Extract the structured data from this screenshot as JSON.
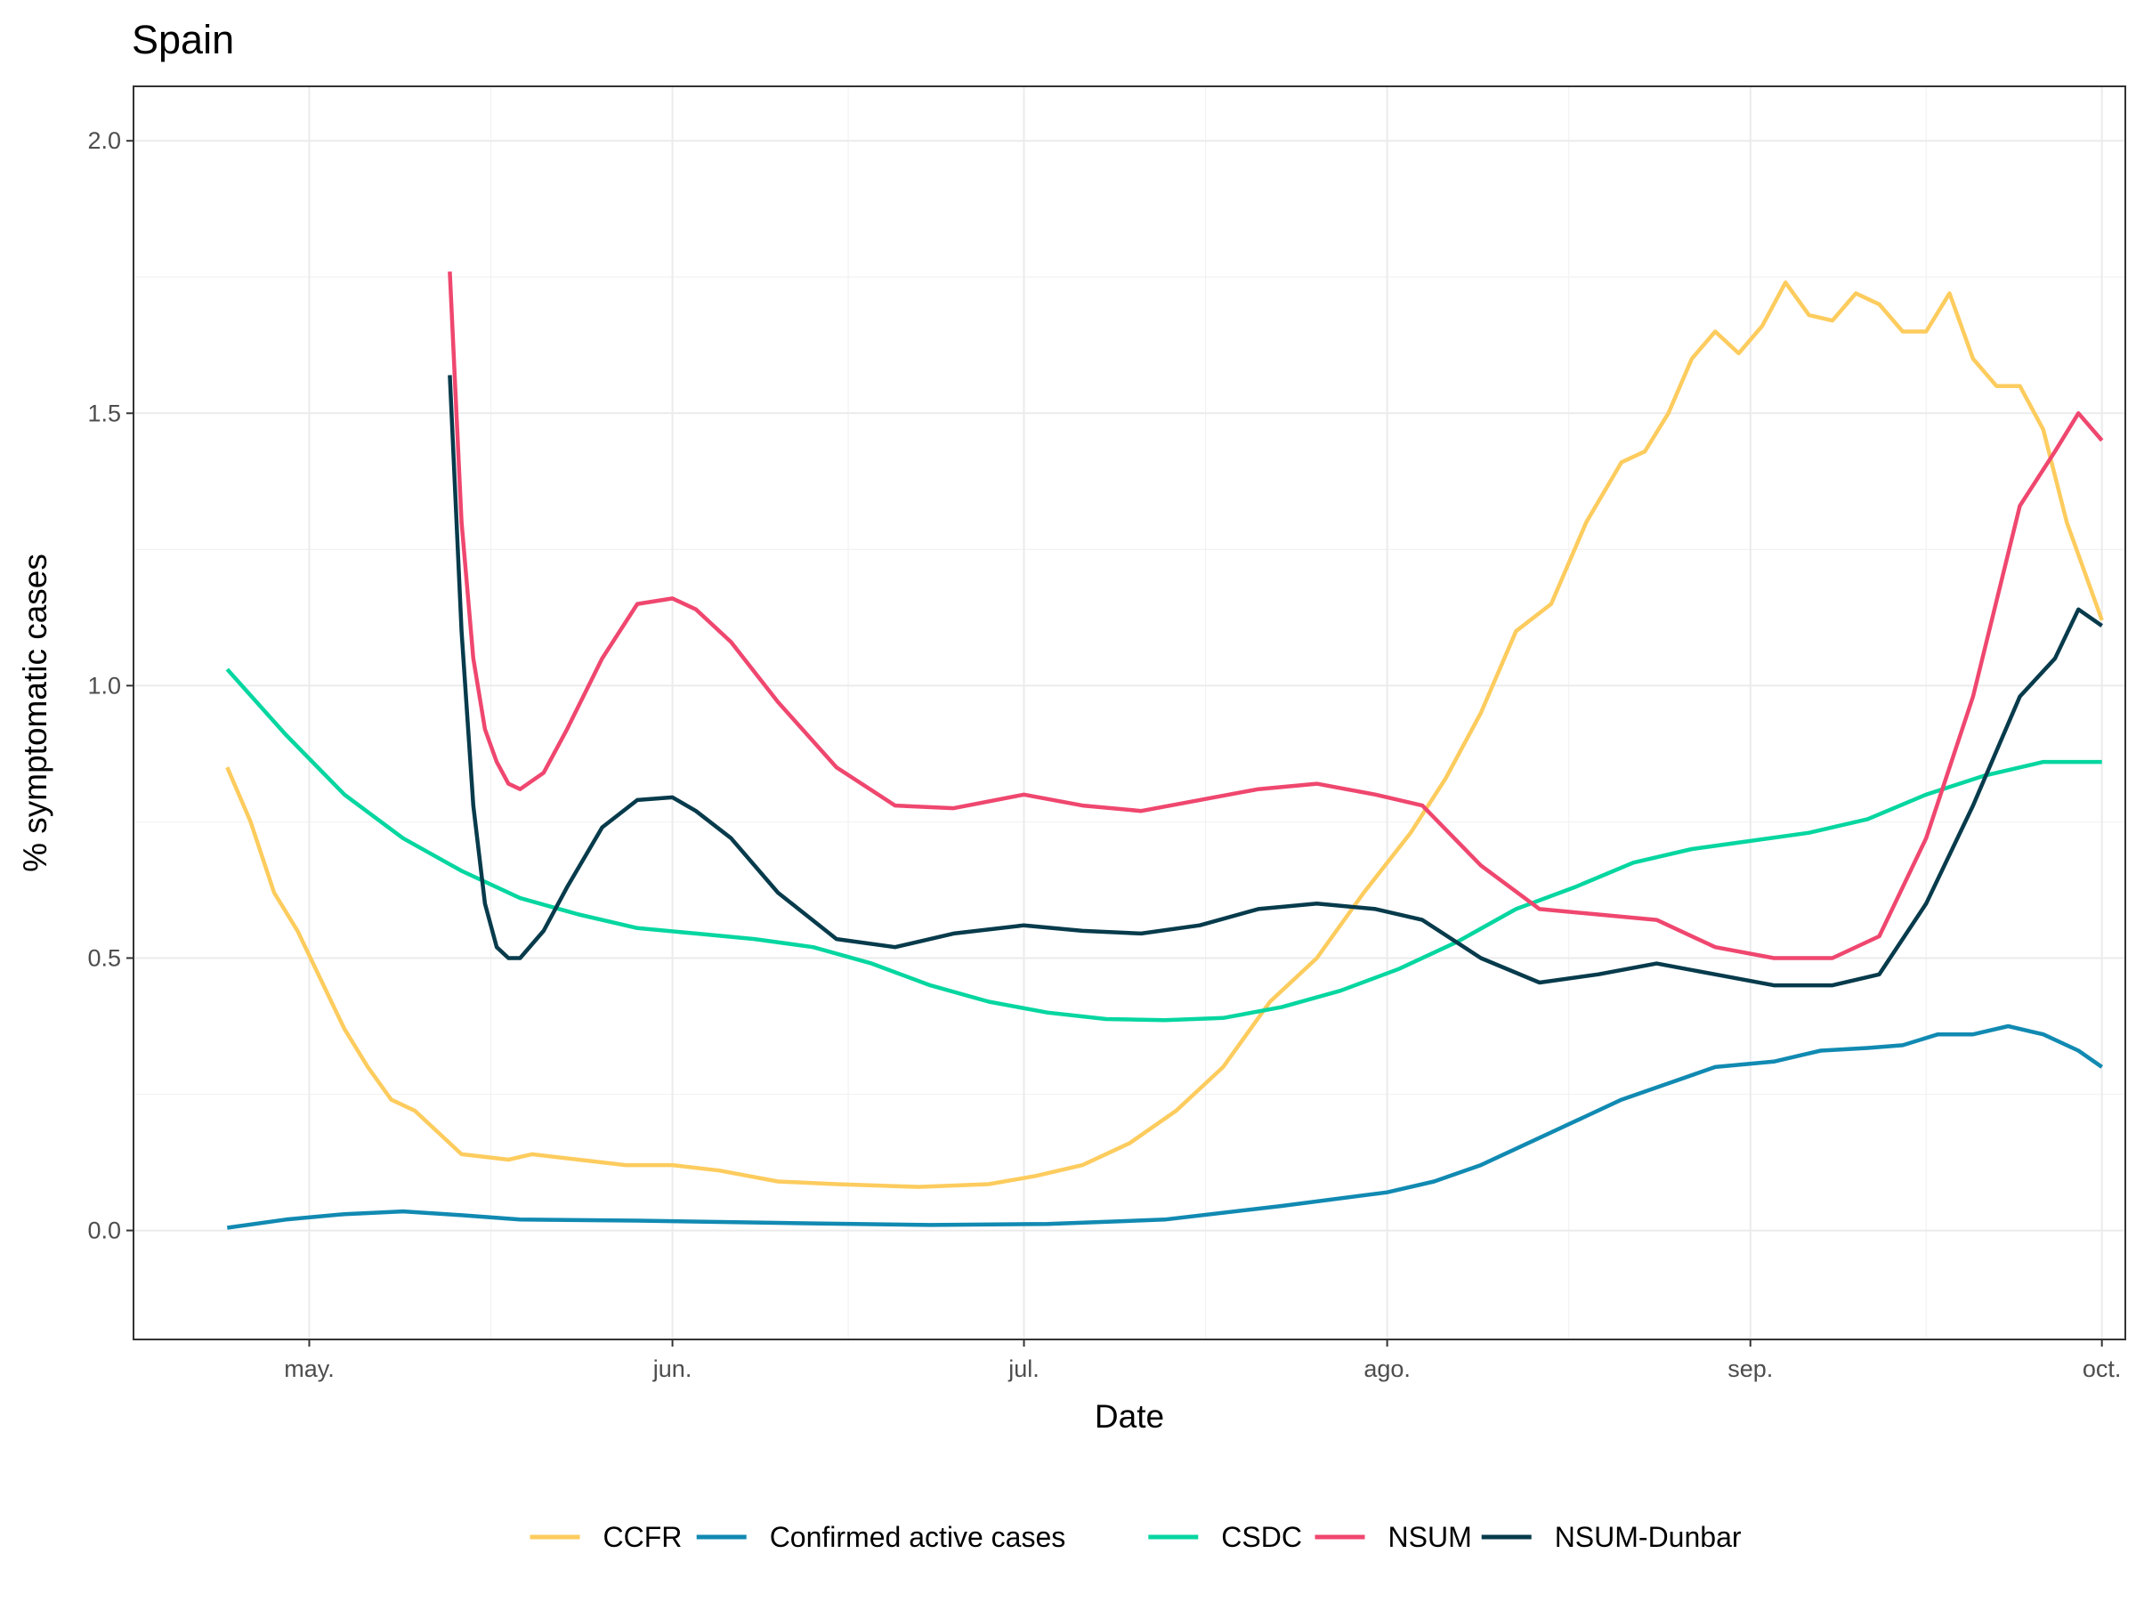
{
  "chart_data": {
    "type": "line",
    "title": "Spain",
    "xlabel": "Date",
    "ylabel": "% symptomatic cases",
    "ylim": [
      -0.2,
      2.1
    ],
    "yticks": [
      "0.0",
      "0.5",
      "1.0",
      "1.5",
      "2.0"
    ],
    "ytick_values": [
      0.0,
      0.5,
      1.0,
      1.5,
      2.0
    ],
    "xlim": [
      "2020-04-16",
      "2020-10-03"
    ],
    "xticks": [
      "may.",
      "jun.",
      "jul.",
      "ago.",
      "sep.",
      "oct."
    ],
    "xtick_values": [
      "2020-05-01",
      "2020-06-01",
      "2020-07-01",
      "2020-08-01",
      "2020-09-01",
      "2020-10-01"
    ],
    "grid": true,
    "legend_position": "bottom",
    "series": [
      {
        "name": "CCFR",
        "color": "#FDCC5E",
        "x": [
          "2020-04-24",
          "2020-04-26",
          "2020-04-28",
          "2020-04-30",
          "2020-05-02",
          "2020-05-04",
          "2020-05-06",
          "2020-05-08",
          "2020-05-10",
          "2020-05-12",
          "2020-05-14",
          "2020-05-16",
          "2020-05-18",
          "2020-05-20",
          "2020-05-24",
          "2020-05-28",
          "2020-06-01",
          "2020-06-05",
          "2020-06-10",
          "2020-06-15",
          "2020-06-22",
          "2020-06-28",
          "2020-07-02",
          "2020-07-06",
          "2020-07-10",
          "2020-07-14",
          "2020-07-18",
          "2020-07-22",
          "2020-07-26",
          "2020-07-30",
          "2020-08-03",
          "2020-08-06",
          "2020-08-09",
          "2020-08-12",
          "2020-08-15",
          "2020-08-18",
          "2020-08-21",
          "2020-08-23",
          "2020-08-25",
          "2020-08-27",
          "2020-08-29",
          "2020-08-31",
          "2020-09-02",
          "2020-09-04",
          "2020-09-06",
          "2020-09-08",
          "2020-09-10",
          "2020-09-12",
          "2020-09-14",
          "2020-09-16",
          "2020-09-18",
          "2020-09-20",
          "2020-09-22",
          "2020-09-24",
          "2020-09-26",
          "2020-09-28",
          "2020-10-01"
        ],
        "y": [
          0.85,
          0.75,
          0.62,
          0.55,
          0.46,
          0.37,
          0.3,
          0.24,
          0.22,
          0.18,
          0.14,
          0.135,
          0.13,
          0.14,
          0.13,
          0.12,
          0.12,
          0.11,
          0.09,
          0.085,
          0.08,
          0.085,
          0.1,
          0.12,
          0.16,
          0.22,
          0.3,
          0.42,
          0.5,
          0.62,
          0.73,
          0.83,
          0.95,
          1.1,
          1.15,
          1.3,
          1.41,
          1.43,
          1.5,
          1.6,
          1.65,
          1.61,
          1.66,
          1.74,
          1.68,
          1.67,
          1.72,
          1.7,
          1.65,
          1.65,
          1.72,
          1.6,
          1.55,
          1.55,
          1.47,
          1.3,
          1.12
        ]
      },
      {
        "name": "Confirmed active cases",
        "color": "#118AB2",
        "x": [
          "2020-04-24",
          "2020-04-29",
          "2020-05-04",
          "2020-05-09",
          "2020-05-14",
          "2020-05-19",
          "2020-05-29",
          "2020-06-13",
          "2020-06-23",
          "2020-07-03",
          "2020-07-13",
          "2020-07-23",
          "2020-08-01",
          "2020-08-05",
          "2020-08-09",
          "2020-08-13",
          "2020-08-17",
          "2020-08-21",
          "2020-08-25",
          "2020-08-29",
          "2020-09-03",
          "2020-09-07",
          "2020-09-11",
          "2020-09-14",
          "2020-09-17",
          "2020-09-20",
          "2020-09-23",
          "2020-09-26",
          "2020-09-29",
          "2020-10-01"
        ],
        "y": [
          0.005,
          0.02,
          0.03,
          0.035,
          0.028,
          0.02,
          0.018,
          0.013,
          0.01,
          0.012,
          0.02,
          0.045,
          0.07,
          0.09,
          0.12,
          0.16,
          0.2,
          0.24,
          0.27,
          0.3,
          0.31,
          0.33,
          0.335,
          0.34,
          0.36,
          0.36,
          0.375,
          0.36,
          0.33,
          0.3
        ]
      },
      {
        "name": "CSDC",
        "color": "#06D6A0",
        "x": [
          "2020-04-24",
          "2020-04-29",
          "2020-05-04",
          "2020-05-09",
          "2020-05-14",
          "2020-05-19",
          "2020-05-24",
          "2020-05-29",
          "2020-06-03",
          "2020-06-08",
          "2020-06-13",
          "2020-06-18",
          "2020-06-23",
          "2020-06-28",
          "2020-07-03",
          "2020-07-08",
          "2020-07-13",
          "2020-07-18",
          "2020-07-23",
          "2020-07-28",
          "2020-08-02",
          "2020-08-07",
          "2020-08-12",
          "2020-08-17",
          "2020-08-22",
          "2020-08-27",
          "2020-09-01",
          "2020-09-06",
          "2020-09-11",
          "2020-09-16",
          "2020-09-21",
          "2020-09-26",
          "2020-10-01"
        ],
        "y": [
          1.03,
          0.91,
          0.8,
          0.72,
          0.66,
          0.61,
          0.58,
          0.555,
          0.545,
          0.535,
          0.52,
          0.49,
          0.45,
          0.42,
          0.4,
          0.388,
          0.386,
          0.39,
          0.41,
          0.44,
          0.48,
          0.53,
          0.59,
          0.63,
          0.675,
          0.7,
          0.715,
          0.73,
          0.755,
          0.8,
          0.835,
          0.86,
          0.86
        ]
      },
      {
        "name": "NSUM",
        "color": "#EF476F",
        "x": [
          "2020-05-13",
          "2020-05-14",
          "2020-05-15",
          "2020-05-16",
          "2020-05-17",
          "2020-05-18",
          "2020-05-19",
          "2020-05-21",
          "2020-05-23",
          "2020-05-26",
          "2020-05-29",
          "2020-06-01",
          "2020-06-03",
          "2020-06-06",
          "2020-06-10",
          "2020-06-15",
          "2020-06-20",
          "2020-06-25",
          "2020-07-01",
          "2020-07-06",
          "2020-07-11",
          "2020-07-16",
          "2020-07-21",
          "2020-07-26",
          "2020-07-31",
          "2020-08-04",
          "2020-08-09",
          "2020-08-14",
          "2020-08-19",
          "2020-08-24",
          "2020-08-29",
          "2020-09-03",
          "2020-09-08",
          "2020-09-12",
          "2020-09-16",
          "2020-09-20",
          "2020-09-24",
          "2020-09-27",
          "2020-09-29",
          "2020-10-01"
        ],
        "y": [
          1.76,
          1.3,
          1.05,
          0.92,
          0.86,
          0.82,
          0.81,
          0.84,
          0.92,
          1.05,
          1.15,
          1.16,
          1.14,
          1.08,
          0.97,
          0.85,
          0.78,
          0.775,
          0.8,
          0.78,
          0.77,
          0.79,
          0.81,
          0.82,
          0.8,
          0.78,
          0.67,
          0.59,
          0.58,
          0.57,
          0.52,
          0.5,
          0.5,
          0.54,
          0.72,
          0.98,
          1.33,
          1.43,
          1.5,
          1.45
        ]
      },
      {
        "name": "NSUM-Dunbar",
        "color": "#073B4C",
        "x": [
          "2020-05-13",
          "2020-05-14",
          "2020-05-15",
          "2020-05-16",
          "2020-05-17",
          "2020-05-18",
          "2020-05-19",
          "2020-05-21",
          "2020-05-23",
          "2020-05-26",
          "2020-05-29",
          "2020-06-01",
          "2020-06-03",
          "2020-06-06",
          "2020-06-10",
          "2020-06-15",
          "2020-06-20",
          "2020-06-25",
          "2020-07-01",
          "2020-07-06",
          "2020-07-11",
          "2020-07-16",
          "2020-07-21",
          "2020-07-26",
          "2020-07-31",
          "2020-08-04",
          "2020-08-09",
          "2020-08-14",
          "2020-08-19",
          "2020-08-24",
          "2020-08-29",
          "2020-09-03",
          "2020-09-08",
          "2020-09-12",
          "2020-09-16",
          "2020-09-20",
          "2020-09-24",
          "2020-09-27",
          "2020-09-29",
          "2020-10-01"
        ],
        "y": [
          1.57,
          1.1,
          0.78,
          0.6,
          0.52,
          0.5,
          0.5,
          0.55,
          0.63,
          0.74,
          0.79,
          0.795,
          0.77,
          0.72,
          0.62,
          0.535,
          0.52,
          0.545,
          0.56,
          0.55,
          0.545,
          0.56,
          0.59,
          0.6,
          0.59,
          0.57,
          0.5,
          0.455,
          0.47,
          0.49,
          0.47,
          0.45,
          0.45,
          0.47,
          0.6,
          0.78,
          0.98,
          1.05,
          1.14,
          1.11
        ]
      }
    ]
  }
}
